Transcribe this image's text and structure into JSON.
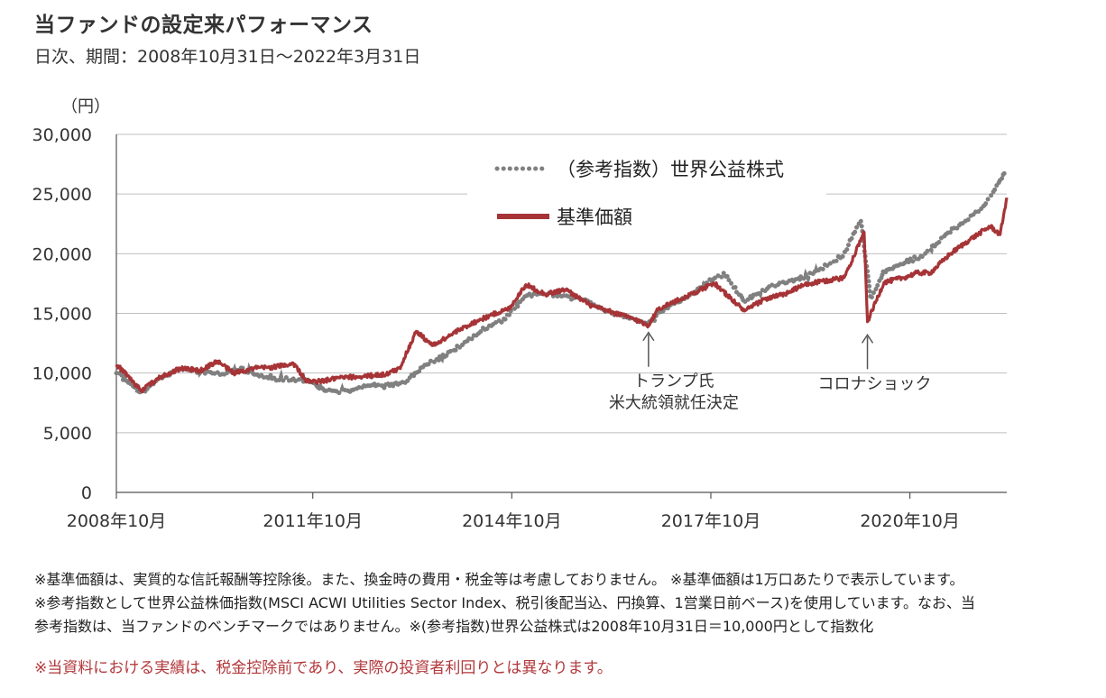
{
  "title": "当ファンドの設定来パフォーマンス",
  "subtitle": "日次、期間：2008年10月31日～2022年3月31日",
  "chart_data": {
    "type": "line",
    "y_unit_label": "（円）",
    "ylim": [
      0,
      30000
    ],
    "y_ticks": [
      0,
      5000,
      10000,
      15000,
      20000,
      25000,
      30000
    ],
    "y_tick_labels": [
      "0",
      "5,000",
      "10,000",
      "15,000",
      "20,000",
      "25,000",
      "30,000"
    ],
    "xlim": [
      2008.83,
      2022.25
    ],
    "x_ticks": [
      2008.79,
      2011.79,
      2014.79,
      2017.79,
      2020.79
    ],
    "x_tick_labels": [
      "2008年10月",
      "2011年10月",
      "2014年10月",
      "2017年10月",
      "2020年10月"
    ],
    "grid": "horizontal",
    "legend_position": "top-left",
    "series": [
      {
        "name": "（参考指数）世界公益株式",
        "style": "dotted",
        "color": "#808080",
        "points": [
          [
            2008.83,
            10000
          ],
          [
            2009.0,
            9300
          ],
          [
            2009.2,
            8300
          ],
          [
            2009.5,
            9600
          ],
          [
            2009.8,
            10400
          ],
          [
            2010.1,
            10100
          ],
          [
            2010.4,
            9900
          ],
          [
            2010.7,
            10300
          ],
          [
            2011.0,
            9800
          ],
          [
            2011.3,
            9500
          ],
          [
            2011.6,
            9400
          ],
          [
            2011.8,
            9100
          ],
          [
            2012.0,
            8600
          ],
          [
            2012.3,
            8400
          ],
          [
            2012.6,
            9000
          ],
          [
            2012.9,
            8900
          ],
          [
            2013.2,
            9300
          ],
          [
            2013.5,
            10800
          ],
          [
            2013.8,
            11500
          ],
          [
            2014.1,
            12600
          ],
          [
            2014.4,
            13800
          ],
          [
            2014.7,
            14600
          ],
          [
            2015.0,
            16500
          ],
          [
            2015.3,
            16700
          ],
          [
            2015.6,
            16400
          ],
          [
            2015.9,
            16200
          ],
          [
            2016.2,
            15200
          ],
          [
            2016.6,
            14600
          ],
          [
            2016.85,
            14100
          ],
          [
            2017.1,
            15400
          ],
          [
            2017.4,
            16300
          ],
          [
            2017.8,
            17800
          ],
          [
            2018.0,
            18300
          ],
          [
            2018.3,
            16000
          ],
          [
            2018.6,
            17000
          ],
          [
            2018.9,
            17600
          ],
          [
            2019.2,
            18000
          ],
          [
            2019.5,
            18900
          ],
          [
            2019.8,
            20000
          ],
          [
            2020.05,
            22800
          ],
          [
            2020.2,
            16200
          ],
          [
            2020.4,
            18500
          ],
          [
            2020.7,
            19300
          ],
          [
            2021.0,
            19800
          ],
          [
            2021.3,
            21500
          ],
          [
            2021.6,
            22600
          ],
          [
            2021.9,
            24000
          ],
          [
            2022.25,
            27000
          ]
        ]
      },
      {
        "name": "基準価額",
        "style": "solid",
        "color": "#a63437",
        "points": [
          [
            2008.83,
            10700
          ],
          [
            2009.0,
            9800
          ],
          [
            2009.2,
            8500
          ],
          [
            2009.5,
            9700
          ],
          [
            2009.8,
            10400
          ],
          [
            2010.1,
            10200
          ],
          [
            2010.35,
            11000
          ],
          [
            2010.6,
            10000
          ],
          [
            2010.9,
            10400
          ],
          [
            2011.2,
            10500
          ],
          [
            2011.5,
            10800
          ],
          [
            2011.7,
            9300
          ],
          [
            2011.9,
            9300
          ],
          [
            2012.2,
            9600
          ],
          [
            2012.5,
            9700
          ],
          [
            2012.9,
            9900
          ],
          [
            2013.1,
            10400
          ],
          [
            2013.35,
            13500
          ],
          [
            2013.6,
            12300
          ],
          [
            2013.9,
            13300
          ],
          [
            2014.2,
            14200
          ],
          [
            2014.5,
            14900
          ],
          [
            2014.75,
            15400
          ],
          [
            2015.0,
            17400
          ],
          [
            2015.3,
            16600
          ],
          [
            2015.6,
            17000
          ],
          [
            2015.8,
            16300
          ],
          [
            2016.0,
            15600
          ],
          [
            2016.3,
            15100
          ],
          [
            2016.6,
            14600
          ],
          [
            2016.85,
            14000
          ],
          [
            2017.0,
            15400
          ],
          [
            2017.3,
            16100
          ],
          [
            2017.6,
            16900
          ],
          [
            2017.85,
            17500
          ],
          [
            2018.1,
            16200
          ],
          [
            2018.3,
            15200
          ],
          [
            2018.6,
            16200
          ],
          [
            2018.9,
            16600
          ],
          [
            2019.2,
            17400
          ],
          [
            2019.5,
            17700
          ],
          [
            2019.8,
            18000
          ],
          [
            2020.1,
            21800
          ],
          [
            2020.15,
            14300
          ],
          [
            2020.4,
            17600
          ],
          [
            2020.7,
            18000
          ],
          [
            2020.9,
            18400
          ],
          [
            2021.1,
            18400
          ],
          [
            2021.4,
            20000
          ],
          [
            2021.7,
            21200
          ],
          [
            2022.0,
            22300
          ],
          [
            2022.15,
            21600
          ],
          [
            2022.25,
            24700
          ]
        ]
      }
    ],
    "annotations": [
      {
        "lines": [
          "トランプ氏",
          "米大統領就任決定"
        ],
        "x": 2016.85,
        "y": 14000
      },
      {
        "lines": [
          "コロナショック"
        ],
        "x": 2020.15,
        "y": 13800
      }
    ]
  },
  "notes": [
    "※基準価額は、実質的な信託報酬等控除後。また、換金時の費用・税金等は考慮しておりません。 ※基準価額は1万口あたりで表示しています。",
    "※参考指数として世界公益株価指数(MSCI ACWI Utilities Sector Index、税引後配当込、円換算、1営業日前ベース)を使用しています。なお、当",
    "参考指数は、当ファンドのベンチマークではありません。※(参考指数)世界公益株式は2008年10月31日＝10,000円として指数化"
  ],
  "disclaimer": "※当資料における実績は、税金控除前であり、実際の投資者利回りとは異なります。"
}
